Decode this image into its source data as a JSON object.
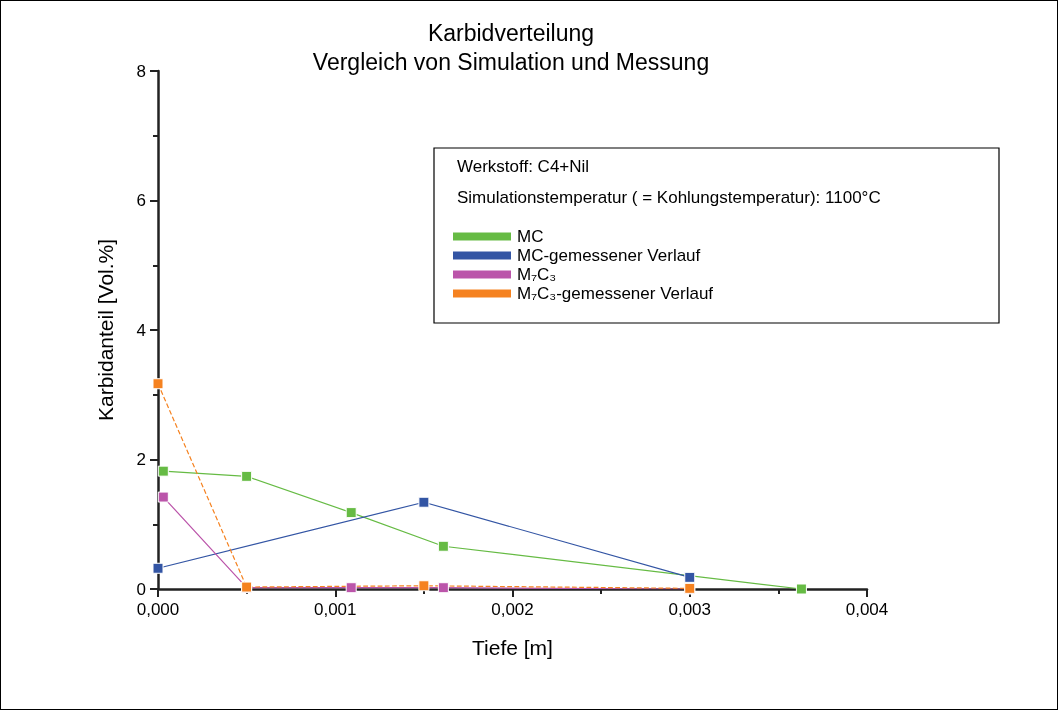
{
  "chart_data": {
    "type": "line",
    "title": "Karbidverteilung",
    "subtitle": "Vergleich von Simulation und Messung",
    "xlabel": "Tiefe [m]",
    "ylabel": "Karbidanteil [Vol.%]",
    "annotations": [
      "Werkstoff: C4+Nil",
      "Simulationstemperatur ( = Kohlungstemperatur): 1100°C"
    ],
    "series": [
      {
        "name": "MC",
        "color": "#66bb44",
        "x": [
          3e-05,
          0.0005,
          0.00109,
          0.00161,
          0.00363
        ],
        "values": [
          1.82,
          1.74,
          1.18,
          0.66,
          0
        ]
      },
      {
        "name": "MC-gemessener Verlauf",
        "color": "#3355a4",
        "x": [
          0,
          0.0015,
          0.003
        ],
        "values": [
          0.32,
          1.34,
          0.18
        ]
      },
      {
        "name": "M₇C₃",
        "color": "#bb55aa",
        "x": [
          3e-05,
          0.0005,
          0.00109,
          0.00161,
          0.003
        ],
        "values": [
          1.42,
          0.02,
          0.02,
          0.02,
          0
        ]
      },
      {
        "name": "M₇C₃-gemessener Verlauf",
        "color": "#f58220",
        "line_style": "dashed",
        "x": [
          0,
          0.0005,
          0.0015,
          0.003
        ],
        "values": [
          3.17,
          0.03,
          0.05,
          0.01
        ]
      }
    ],
    "xlim": [
      0,
      0.004
    ],
    "xticks": [
      {
        "value": 0,
        "label": "0,000"
      },
      {
        "value": 0.001,
        "label": "0,001"
      },
      {
        "value": 0.002,
        "label": "0,002"
      },
      {
        "value": 0.003,
        "label": "0,003"
      },
      {
        "value": 0.004,
        "label": "0,004"
      }
    ],
    "ylim": [
      0,
      8
    ],
    "yticks": [
      0,
      2,
      4,
      6,
      8
    ],
    "grid": false,
    "legend": "top right",
    "marker": "square",
    "line_style": "solid"
  }
}
